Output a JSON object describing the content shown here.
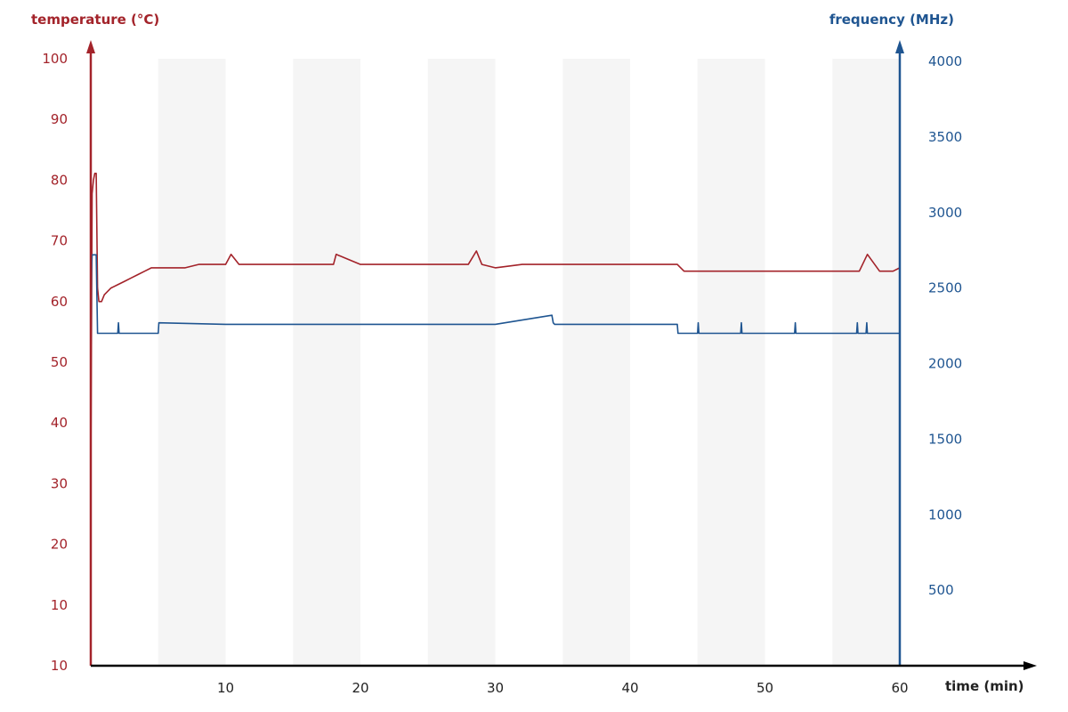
{
  "chart_data": {
    "type": "line",
    "title": "",
    "xlabel": "time (min)",
    "ylabel_left": "temperature (°C)",
    "ylabel_right": "frequency (MHz)",
    "xlim": [
      0,
      60
    ],
    "ylim_left": [
      10,
      100
    ],
    "ylim_right": [
      0,
      4000
    ],
    "x_ticks": [
      "10",
      "20",
      "30",
      "40",
      "50",
      "60"
    ],
    "y_left_ticks": [
      "100",
      "90",
      "80",
      "70",
      "60",
      "50",
      "40",
      "30",
      "20",
      "10",
      "10"
    ],
    "y_right_ticks": [
      "4000",
      "3500",
      "3000",
      "2500",
      "2000",
      "1500",
      "1000",
      "500"
    ],
    "shaded_bands": [
      [
        5,
        10
      ],
      [
        15,
        20
      ],
      [
        25,
        30
      ],
      [
        35,
        40
      ],
      [
        45,
        50
      ],
      [
        55,
        60
      ]
    ],
    "colors": {
      "temperature": "#a3232a",
      "frequency": "#1f5591",
      "band": "#f5f5f5",
      "axis": "#000000"
    },
    "series": [
      {
        "axis": "left",
        "color": "#a3232a",
        "x": [
          0,
          0.05,
          0.1,
          0.2,
          0.3,
          0.4,
          0.5,
          0.6,
          0.8,
          1.0,
          1.5,
          2.0,
          2.5,
          3.0,
          3.5,
          4.0,
          4.5,
          5.0,
          6.0,
          7.0,
          8.0,
          9.0,
          10.0,
          10.4,
          11.0,
          12.0,
          14.0,
          16.0,
          18.0,
          18.2,
          20.0,
          22.0,
          24.0,
          26.0,
          28.0,
          28.6,
          29.0,
          30.0,
          32.0,
          34.0,
          36.0,
          38.0,
          40.0,
          42.0,
          43.5,
          44.0,
          45.0,
          47.0,
          49.0,
          51.0,
          53.0,
          55.0,
          57.0,
          57.6,
          58.5,
          59.5,
          60.0
        ],
        "y": [
          39,
          60,
          80,
          82,
          83,
          83,
          66,
          64,
          64,
          65,
          66,
          66.5,
          67,
          67.5,
          68,
          68.5,
          69,
          69,
          69,
          69,
          69.5,
          69.5,
          69.5,
          71,
          69.5,
          69.5,
          69.5,
          69.5,
          69.5,
          71,
          69.5,
          69.5,
          69.5,
          69.5,
          69.5,
          71.5,
          69.5,
          69,
          69.5,
          69.5,
          69.5,
          69.5,
          69.5,
          69.5,
          69.5,
          68.5,
          68.5,
          68.5,
          68.5,
          68.5,
          68.5,
          68.5,
          68.5,
          71,
          68.5,
          68.5,
          69
        ]
      },
      {
        "axis": "right",
        "color": "#1f5591",
        "x": [
          0,
          0.05,
          0.1,
          0.2,
          0.4,
          0.5,
          1.0,
          2.0,
          2.05,
          2.1,
          3.0,
          5.0,
          5.05,
          10.0,
          20.0,
          30.0,
          34.2,
          34.3,
          34.4,
          40.0,
          43.5,
          43.55,
          45.0,
          45.05,
          45.1,
          48.2,
          48.25,
          48.3,
          52.2,
          52.25,
          52.3,
          56.8,
          56.85,
          56.9,
          57.5,
          57.55,
          57.6,
          60.0
        ],
        "y": [
          1950,
          2600,
          2720,
          2720,
          2720,
          2200,
          2200,
          2200,
          2270,
          2200,
          2200,
          2200,
          2270,
          2260,
          2260,
          2260,
          2320,
          2270,
          2260,
          2260,
          2260,
          2200,
          2200,
          2270,
          2200,
          2200,
          2270,
          2200,
          2200,
          2270,
          2200,
          2200,
          2270,
          2200,
          2200,
          2270,
          2200,
          2200
        ]
      }
    ]
  }
}
